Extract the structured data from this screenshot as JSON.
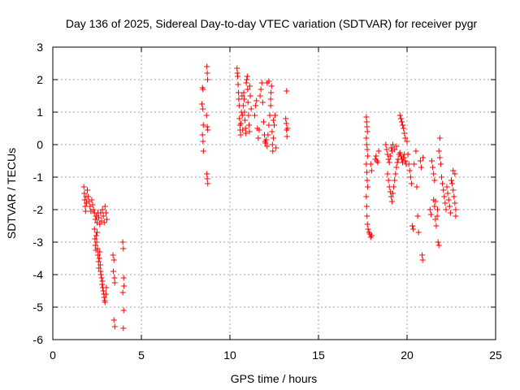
{
  "chart_data": {
    "type": "scatter",
    "title": "Day 136 of 2025, Sidereal Day-to-day VTEC variation (SDTVAR) for receiver pygr",
    "xlabel": "GPS time / hours",
    "ylabel": "SDTVAR / TECUs",
    "xlim": [
      0,
      25
    ],
    "ylim": [
      -6,
      3
    ],
    "xticks": [
      "0",
      "5",
      "10",
      "15",
      "20",
      "25"
    ],
    "xtick_values": [
      0,
      5,
      10,
      15,
      20,
      25
    ],
    "yticks": [
      "3",
      "2",
      "1",
      "0",
      "-1",
      "-2",
      "-3",
      "-4",
      "-5",
      "-6"
    ],
    "ytick_values": [
      3,
      2,
      1,
      0,
      -1,
      -2,
      -3,
      -4,
      -5,
      -6
    ],
    "grid": true,
    "marker": "+",
    "color": "#ff0000",
    "series": [
      {
        "name": "SDTVAR",
        "points": [
          [
            1.75,
            -1.3
          ],
          [
            1.78,
            -1.5
          ],
          [
            1.8,
            -1.7
          ],
          [
            1.83,
            -1.9
          ],
          [
            1.85,
            -2.05
          ],
          [
            1.88,
            -1.6
          ],
          [
            1.9,
            -1.8
          ],
          [
            1.95,
            -1.4
          ],
          [
            2.0,
            -1.6
          ],
          [
            2.05,
            -1.75
          ],
          [
            2.1,
            -1.9
          ],
          [
            2.15,
            -2.05
          ],
          [
            2.2,
            -1.7
          ],
          [
            2.25,
            -1.85
          ],
          [
            2.3,
            -2.0
          ],
          [
            2.35,
            -2.1
          ],
          [
            2.4,
            -2.3
          ],
          [
            2.45,
            -2.2
          ],
          [
            2.5,
            -2.4
          ],
          [
            2.55,
            -2.1
          ],
          [
            2.6,
            -2.25
          ],
          [
            2.65,
            -2.45
          ],
          [
            2.7,
            -2.1
          ],
          [
            2.75,
            -2.35
          ],
          [
            2.8,
            -2.0
          ],
          [
            2.85,
            -2.2
          ],
          [
            2.9,
            -2.4
          ],
          [
            2.95,
            -1.9
          ],
          [
            3.0,
            -2.1
          ],
          [
            3.05,
            -2.3
          ],
          [
            2.35,
            -2.6
          ],
          [
            2.38,
            -2.9
          ],
          [
            2.4,
            -3.1
          ],
          [
            2.43,
            -3.25
          ],
          [
            2.45,
            -2.8
          ],
          [
            2.48,
            -3.0
          ],
          [
            2.5,
            -2.7
          ],
          [
            2.52,
            -3.2
          ],
          [
            2.55,
            -3.4
          ],
          [
            2.58,
            -3.6
          ],
          [
            2.6,
            -3.8
          ],
          [
            2.63,
            -3.5
          ],
          [
            2.65,
            -3.3
          ],
          [
            2.68,
            -3.7
          ],
          [
            2.7,
            -3.9
          ],
          [
            2.72,
            -4.0
          ],
          [
            2.75,
            -4.1
          ],
          [
            2.78,
            -4.3
          ],
          [
            2.8,
            -4.2
          ],
          [
            2.82,
            -4.4
          ],
          [
            2.85,
            -4.5
          ],
          [
            2.88,
            -4.6
          ],
          [
            2.9,
            -4.7
          ],
          [
            2.93,
            -4.8
          ],
          [
            2.95,
            -4.85
          ],
          [
            3.0,
            -4.6
          ],
          [
            3.02,
            -4.4
          ],
          [
            3.4,
            -3.4
          ],
          [
            3.45,
            -3.55
          ],
          [
            3.42,
            -3.9
          ],
          [
            3.48,
            -4.1
          ],
          [
            3.5,
            -4.25
          ],
          [
            3.45,
            -5.4
          ],
          [
            3.5,
            -5.6
          ],
          [
            3.95,
            -3.0
          ],
          [
            3.98,
            -3.2
          ],
          [
            4.0,
            -4.1
          ],
          [
            4.02,
            -4.35
          ],
          [
            3.95,
            -4.55
          ],
          [
            4.0,
            -5.1
          ],
          [
            3.98,
            -5.65
          ],
          [
            8.45,
            1.75
          ],
          [
            8.48,
            1.7
          ],
          [
            8.42,
            1.25
          ],
          [
            8.47,
            1.1
          ],
          [
            8.5,
            0.6
          ],
          [
            8.45,
            0.3
          ],
          [
            8.48,
            0.1
          ],
          [
            8.5,
            -0.2
          ],
          [
            8.7,
            2.4
          ],
          [
            8.72,
            2.2
          ],
          [
            8.74,
            2.0
          ],
          [
            8.68,
            0.9
          ],
          [
            8.72,
            0.55
          ],
          [
            8.75,
            0.45
          ],
          [
            8.7,
            -0.9
          ],
          [
            8.72,
            -1.05
          ],
          [
            8.75,
            -1.2
          ],
          [
            10.4,
            2.35
          ],
          [
            10.42,
            2.2
          ],
          [
            10.44,
            2.1
          ],
          [
            10.46,
            1.85
          ],
          [
            10.48,
            1.6
          ],
          [
            10.5,
            1.4
          ],
          [
            10.52,
            1.2
          ],
          [
            10.54,
            0.8
          ],
          [
            10.56,
            0.6
          ],
          [
            10.58,
            0.45
          ],
          [
            10.6,
            0.3
          ],
          [
            10.62,
            0.65
          ],
          [
            10.65,
            1.0
          ],
          [
            10.68,
            1.5
          ],
          [
            10.7,
            0.9
          ],
          [
            10.72,
            0.45
          ],
          [
            10.75,
            1.2
          ],
          [
            10.78,
            1.6
          ],
          [
            10.8,
            1.4
          ],
          [
            10.82,
            1.0
          ],
          [
            10.85,
            0.75
          ],
          [
            10.88,
            0.5
          ],
          [
            10.9,
            0.35
          ],
          [
            10.92,
            1.9
          ],
          [
            10.95,
            2.0
          ],
          [
            10.98,
            2.1
          ],
          [
            11.0,
            1.7
          ],
          [
            11.02,
            1.3
          ],
          [
            11.05,
            0.9
          ],
          [
            11.08,
            0.6
          ],
          [
            11.1,
            0.4
          ],
          [
            11.12,
            1.8
          ],
          [
            11.15,
            1.5
          ],
          [
            11.2,
            1.1
          ],
          [
            11.4,
            0.9
          ],
          [
            11.45,
            1.2
          ],
          [
            11.5,
            1.35
          ],
          [
            11.55,
            0.5
          ],
          [
            11.6,
            0.2
          ],
          [
            11.65,
            0.45
          ],
          [
            11.7,
            1.5
          ],
          [
            11.75,
            1.7
          ],
          [
            11.8,
            1.9
          ],
          [
            11.85,
            1.3
          ],
          [
            11.9,
            0.7
          ],
          [
            11.95,
            0.3
          ],
          [
            11.98,
            0.1
          ],
          [
            12.0,
            0.05
          ],
          [
            12.05,
            0.15
          ],
          [
            12.1,
            -0.05
          ],
          [
            12.15,
            0.3
          ],
          [
            12.2,
            0.6
          ],
          [
            12.25,
            0.9
          ],
          [
            12.3,
            1.2
          ],
          [
            12.32,
            1.6
          ],
          [
            12.35,
            1.8
          ],
          [
            12.38,
            0.4
          ],
          [
            12.4,
            0.0
          ],
          [
            12.42,
            -0.2
          ],
          [
            12.45,
            0.2
          ],
          [
            12.5,
            0.6
          ],
          [
            12.55,
            0.9
          ],
          [
            12.6,
            -0.1
          ],
          [
            12.1,
            1.9
          ],
          [
            12.2,
            1.95
          ],
          [
            12.3,
            1.4
          ],
          [
            12.45,
            0.75
          ],
          [
            13.2,
            1.65
          ],
          [
            13.15,
            0.8
          ],
          [
            13.18,
            0.65
          ],
          [
            13.2,
            0.45
          ],
          [
            13.22,
            0.25
          ],
          [
            13.25,
            0.5
          ],
          [
            17.7,
            0.85
          ],
          [
            17.72,
            0.7
          ],
          [
            17.74,
            0.55
          ],
          [
            17.76,
            0.4
          ],
          [
            17.7,
            0.2
          ],
          [
            17.72,
            0.0
          ],
          [
            17.75,
            -0.15
          ],
          [
            17.78,
            -0.35
          ],
          [
            17.7,
            -0.6
          ],
          [
            17.73,
            -0.85
          ],
          [
            17.75,
            -1.1
          ],
          [
            17.78,
            -1.3
          ],
          [
            17.7,
            -1.6
          ],
          [
            17.72,
            -1.9
          ],
          [
            17.74,
            -2.2
          ],
          [
            17.76,
            -2.45
          ],
          [
            17.8,
            -2.6
          ],
          [
            17.85,
            -2.7
          ],
          [
            17.9,
            -2.75
          ],
          [
            17.95,
            -2.85
          ],
          [
            18.0,
            -2.8
          ],
          [
            17.95,
            -0.6
          ],
          [
            18.0,
            -0.8
          ],
          [
            18.2,
            -0.45
          ],
          [
            18.25,
            -0.35
          ],
          [
            18.3,
            -0.5
          ],
          [
            18.35,
            -0.55
          ],
          [
            18.4,
            -0.2
          ],
          [
            18.8,
            0.0
          ],
          [
            18.85,
            -0.15
          ],
          [
            18.9,
            -0.3
          ],
          [
            18.95,
            -0.45
          ],
          [
            19.0,
            -0.55
          ],
          [
            18.9,
            -0.9
          ],
          [
            18.95,
            -1.1
          ],
          [
            19.0,
            -1.3
          ],
          [
            19.05,
            -1.45
          ],
          [
            19.1,
            -1.6
          ],
          [
            19.15,
            -1.75
          ],
          [
            19.2,
            -1.5
          ],
          [
            19.25,
            -1.3
          ],
          [
            19.3,
            -1.1
          ],
          [
            19.35,
            -0.9
          ],
          [
            19.4,
            -0.7
          ],
          [
            19.45,
            -0.55
          ],
          [
            19.5,
            -0.45
          ],
          [
            19.55,
            -0.3
          ],
          [
            19.6,
            -0.25
          ],
          [
            19.65,
            -0.35
          ],
          [
            19.7,
            -0.45
          ],
          [
            19.75,
            -0.55
          ],
          [
            19.8,
            -0.4
          ],
          [
            19.85,
            -0.3
          ],
          [
            19.9,
            -0.5
          ],
          [
            19.95,
            -0.6
          ],
          [
            19.1,
            -0.1
          ],
          [
            19.2,
            0.0
          ],
          [
            19.3,
            -0.15
          ],
          [
            19.4,
            -0.05
          ],
          [
            19.05,
            -0.35
          ],
          [
            19.15,
            -0.2
          ],
          [
            19.6,
            0.9
          ],
          [
            19.65,
            0.8
          ],
          [
            19.7,
            0.7
          ],
          [
            19.75,
            0.6
          ],
          [
            19.8,
            0.5
          ],
          [
            19.85,
            0.35
          ],
          [
            19.9,
            0.2
          ],
          [
            20.0,
            0.1
          ],
          [
            20.05,
            -0.3
          ],
          [
            20.1,
            -0.6
          ],
          [
            20.15,
            -0.8
          ],
          [
            20.2,
            -1.0
          ],
          [
            20.25,
            -1.2
          ],
          [
            20.3,
            -2.5
          ],
          [
            20.35,
            -2.6
          ],
          [
            20.4,
            -0.6
          ],
          [
            20.5,
            -0.2
          ],
          [
            20.55,
            -1.3
          ],
          [
            20.6,
            -2.2
          ],
          [
            20.65,
            -2.7
          ],
          [
            20.75,
            -0.5
          ],
          [
            20.8,
            -0.7
          ],
          [
            20.85,
            -3.4
          ],
          [
            20.88,
            -3.55
          ],
          [
            20.9,
            -0.4
          ],
          [
            21.3,
            -2.0
          ],
          [
            21.35,
            -2.15
          ],
          [
            21.4,
            -0.5
          ],
          [
            21.45,
            -0.7
          ],
          [
            21.5,
            -0.9
          ],
          [
            21.55,
            -1.1
          ],
          [
            21.5,
            -1.7
          ],
          [
            21.55,
            -1.9
          ],
          [
            21.6,
            -2.3
          ],
          [
            21.65,
            -2.5
          ],
          [
            21.7,
            -2.2
          ],
          [
            21.75,
            -3.0
          ],
          [
            21.8,
            -3.1
          ],
          [
            21.72,
            -2.0
          ],
          [
            21.85,
            0.2
          ],
          [
            21.8,
            -0.2
          ],
          [
            21.85,
            -0.4
          ],
          [
            21.9,
            -0.6
          ],
          [
            21.95,
            -1.0
          ],
          [
            22.0,
            -1.2
          ],
          [
            22.05,
            -1.4
          ],
          [
            22.1,
            -1.6
          ],
          [
            22.15,
            -1.8
          ],
          [
            22.2,
            -2.0
          ],
          [
            22.25,
            -1.3
          ],
          [
            22.3,
            -1.5
          ],
          [
            22.35,
            -1.7
          ],
          [
            22.4,
            -1.9
          ],
          [
            22.45,
            -2.1
          ],
          [
            22.5,
            -1.1
          ],
          [
            22.55,
            -1.2
          ],
          [
            22.6,
            -1.4
          ],
          [
            22.65,
            -1.6
          ],
          [
            22.7,
            -1.8
          ],
          [
            22.75,
            -2.0
          ],
          [
            22.6,
            -0.8
          ],
          [
            22.7,
            -0.9
          ],
          [
            22.75,
            -2.2
          ],
          [
            21.6,
            -1.75
          ]
        ]
      }
    ]
  }
}
